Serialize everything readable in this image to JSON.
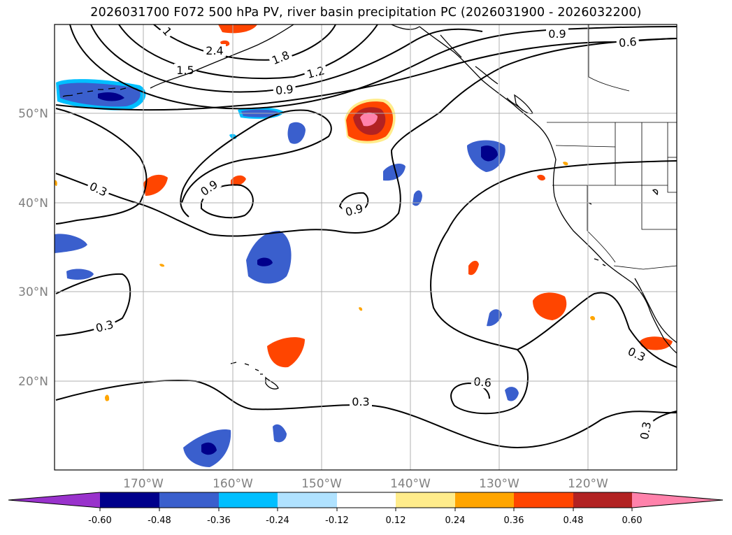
{
  "title": "2026031700 F072 500 hPa PV, river basin precipitation PC (2026031900 - 2026032200)",
  "map": {
    "lat_labels": [
      "50°N",
      "40°N",
      "30°N",
      "20°N"
    ],
    "lon_labels": [
      "170°W",
      "160°W",
      "150°W",
      "140°W",
      "130°W",
      "120°W"
    ],
    "lat_values": [
      50,
      40,
      30,
      20
    ],
    "lon_values": [
      -170,
      -160,
      -150,
      -140,
      -130,
      -120
    ],
    "extent": {
      "lon_min": -180,
      "lon_max": -110,
      "lat_min": 10,
      "lat_max": 60
    }
  },
  "contour_labels": [
    {
      "text": "0.9",
      "rotation": 0
    },
    {
      "text": "0.6",
      "rotation": -5
    },
    {
      "text": "2.4",
      "rotation": 0
    },
    {
      "text": "1.8",
      "rotation": -22
    },
    {
      "text": "1.5",
      "rotation": 0
    },
    {
      "text": "1.2",
      "rotation": -15
    },
    {
      "text": "0.9",
      "rotation": -5
    },
    {
      "text": "1",
      "rotation": 50
    },
    {
      "text": "0.3",
      "rotation": 25
    },
    {
      "text": "0.9",
      "rotation": -35
    },
    {
      "text": "0.9",
      "rotation": -15
    },
    {
      "text": "0.3",
      "rotation": -15
    },
    {
      "text": "0.6",
      "rotation": 5
    },
    {
      "text": "0.3",
      "rotation": 0
    },
    {
      "text": "0.3",
      "rotation": 25
    },
    {
      "text": "0.3",
      "rotation": -80
    }
  ],
  "colorbar": {
    "colors": [
      "#9932cc",
      "#00008b",
      "#3a5fcd",
      "#00bfff",
      "#b0e2ff",
      "#ffffff",
      "#ffec8b",
      "#ffa500",
      "#ff4500",
      "#b22222",
      "#ff82ab"
    ],
    "tick_labels": [
      "-0.60",
      "-0.48",
      "-0.36",
      "-0.24",
      "-0.12",
      "0.12",
      "0.24",
      "0.36",
      "0.48",
      "0.60"
    ]
  }
}
